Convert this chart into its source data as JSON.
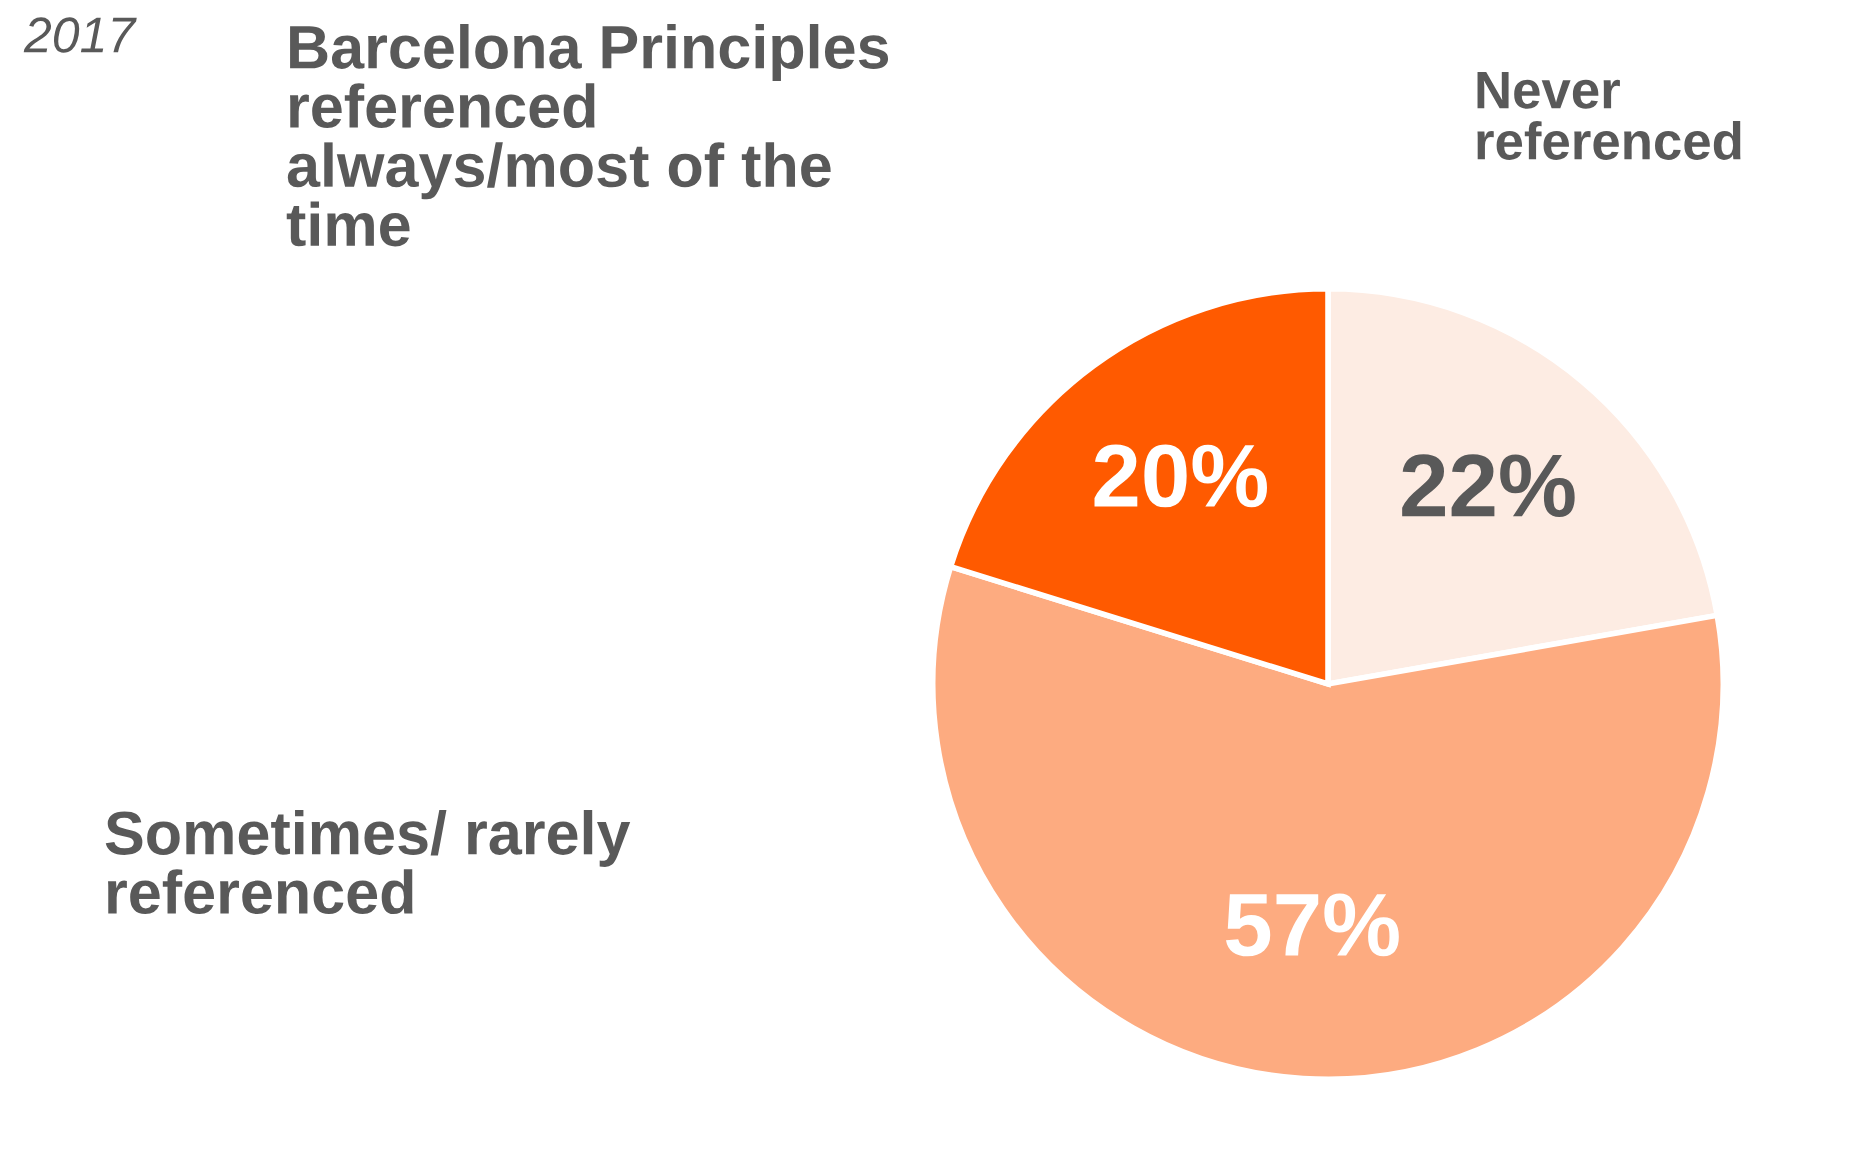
{
  "chart_data": {
    "type": "pie",
    "title": "2017",
    "categories": [
      "Never\nreferenced",
      "Sometimes/ rarely\nreferenced",
      "Barcelona Principles\nreferenced\nalways/most of the\ntime"
    ],
    "values": [
      22,
      57,
      20
    ],
    "colors": [
      "#fdece3",
      "#fdab80",
      "#ff5a00"
    ],
    "value_labels": [
      "22%",
      "57%",
      "20%"
    ],
    "legend": false
  }
}
